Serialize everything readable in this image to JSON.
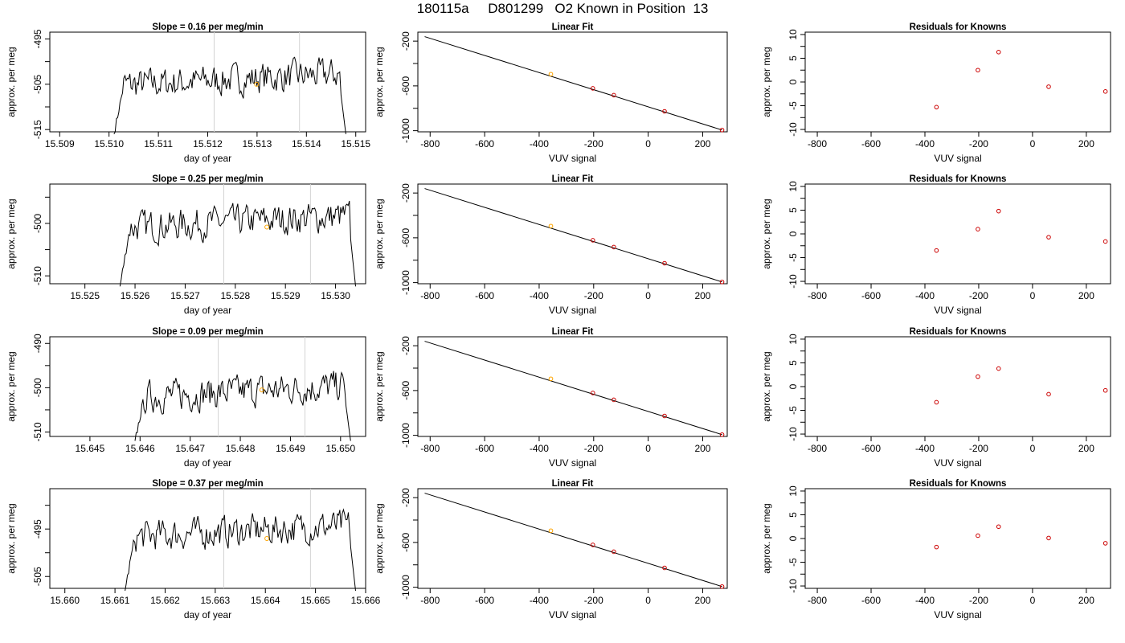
{
  "suptitle": "180115a     D801299   O2 Known in Position  13",
  "colors": {
    "series": "#000000",
    "grid_lines": "#d3d3d3",
    "midpoint": "#ffa500",
    "points": "#cc0000",
    "axes": "#000000"
  },
  "chart_data": [
    {
      "type": "line",
      "title": "Slope =  0.16  per meg/min",
      "xlabel": "day of year",
      "ylabel": "approx. per meg",
      "xlim": [
        15.5088,
        15.5152
      ],
      "ylim": [
        -515.5,
        -493.5
      ],
      "xticks": [
        "15.509",
        "15.510",
        "15.511",
        "15.512",
        "15.513",
        "15.514",
        "15.515"
      ],
      "yticks": [
        "-495",
        "-505",
        "-515"
      ],
      "x_start": 15.5101,
      "x_end": 15.5148,
      "y_start": -516.0,
      "y_end": -516.0,
      "baseline": -505.3,
      "vlines": [
        15.51213,
        15.51386
      ],
      "midpoint": {
        "x": 15.51299,
        "y": -505.0
      }
    },
    {
      "type": "scatter",
      "title": "Linear Fit",
      "xlabel": "VUV signal",
      "ylabel": "approx. per meg",
      "xlim": [
        -845,
        290
      ],
      "ylim": [
        -1010,
        -120
      ],
      "xticks": [
        "-800",
        "-600",
        "-400",
        "-200",
        "0",
        "200"
      ],
      "yticks": [
        "-200",
        "-600",
        "-1000"
      ],
      "fit_line": {
        "x": [
          -820,
          271
        ],
        "y": [
          -160,
          -994
        ]
      },
      "points_x": [
        -357,
        -203,
        -126,
        60,
        271
      ],
      "points_y": [
        -495,
        -622,
        -683,
        -827,
        -994
      ]
    },
    {
      "type": "scatter",
      "title": "Residuals for Knowns",
      "xlabel": "VUV signal",
      "ylabel": "approx. per meg",
      "xlim": [
        -845,
        290
      ],
      "ylim": [
        -10.5,
        10.5
      ],
      "xticks": [
        "-800",
        "-600",
        "-400",
        "-200",
        "0",
        "200"
      ],
      "yticks": [
        "10",
        "5",
        "0",
        "-5",
        "-10"
      ],
      "points_x": [
        -357,
        -203,
        -126,
        60,
        271
      ],
      "points_y": [
        -5.3,
        2.5,
        6.3,
        -1.0,
        -2.0
      ]
    },
    {
      "type": "line",
      "title": "Slope =  0.25  per meg/min",
      "xlabel": "day of year",
      "ylabel": "approx. per meg",
      "xlim": [
        15.5243,
        15.5306
      ],
      "ylim": [
        -511.5,
        -492.5
      ],
      "xticks": [
        "15.525",
        "15.526",
        "15.527",
        "15.528",
        "15.529",
        "15.530"
      ],
      "yticks": [
        "-500",
        "-510"
      ],
      "x_start": 15.5257,
      "x_end": 15.5304,
      "y_start": -512.0,
      "y_end": -512.0,
      "baseline": -500.8,
      "vlines": [
        15.52777,
        15.5295
      ],
      "midpoint": {
        "x": 15.52863,
        "y": -500.7
      }
    },
    {
      "type": "scatter",
      "title": "Linear Fit",
      "xlabel": "VUV signal",
      "ylabel": "approx. per meg",
      "xlim": [
        -845,
        290
      ],
      "ylim": [
        -1010,
        -120
      ],
      "xticks": [
        "-800",
        "-600",
        "-400",
        "-200",
        "0",
        "200"
      ],
      "yticks": [
        "-200",
        "-600",
        "-1000"
      ],
      "fit_line": {
        "x": [
          -820,
          271
        ],
        "y": [
          -160,
          -994
        ]
      },
      "points_x": [
        -357,
        -203,
        -126,
        60,
        271
      ],
      "points_y": [
        -495,
        -622,
        -683,
        -827,
        -994
      ]
    },
    {
      "type": "scatter",
      "title": "Residuals for Knowns",
      "xlabel": "VUV signal",
      "ylabel": "approx. per meg",
      "xlim": [
        -845,
        290
      ],
      "ylim": [
        -10.5,
        10.5
      ],
      "xticks": [
        "-800",
        "-600",
        "-400",
        "-200",
        "0",
        "200"
      ],
      "yticks": [
        "10",
        "5",
        "0",
        "-5",
        "-10"
      ],
      "points_x": [
        -357,
        -203,
        -126,
        60,
        271
      ],
      "points_y": [
        -3.5,
        1.0,
        4.8,
        -0.7,
        -1.6
      ]
    },
    {
      "type": "line",
      "title": "Slope =  0.09  per meg/min",
      "xlabel": "day of year",
      "ylabel": "approx. per meg",
      "xlim": [
        15.6442,
        15.6505
      ],
      "ylim": [
        -511.0,
        -488.5
      ],
      "xticks": [
        "15.645",
        "15.646",
        "15.647",
        "15.648",
        "15.649",
        "15.650"
      ],
      "yticks": [
        "-490",
        "-500",
        "-510"
      ],
      "x_start": 15.6459,
      "x_end": 15.6502,
      "y_start": -512.0,
      "y_end": -512.0,
      "baseline": -502.2,
      "vlines": [
        15.64756,
        15.64929
      ],
      "midpoint": {
        "x": 15.64843,
        "y": -500.5
      }
    },
    {
      "type": "scatter",
      "title": "Linear Fit",
      "xlabel": "VUV signal",
      "ylabel": "approx. per meg",
      "xlim": [
        -845,
        290
      ],
      "ylim": [
        -1010,
        -120
      ],
      "xticks": [
        "-800",
        "-600",
        "-400",
        "-200",
        "0",
        "200"
      ],
      "yticks": [
        "-200",
        "-600",
        "-1000"
      ],
      "fit_line": {
        "x": [
          -820,
          271
        ],
        "y": [
          -160,
          -994
        ]
      },
      "points_x": [
        -357,
        -203,
        -126,
        60,
        271
      ],
      "points_y": [
        -495,
        -622,
        -683,
        -827,
        -994
      ]
    },
    {
      "type": "scatter",
      "title": "Residuals for Knowns",
      "xlabel": "VUV signal",
      "ylabel": "approx. per meg",
      "xlim": [
        -845,
        290
      ],
      "ylim": [
        -10.5,
        10.5
      ],
      "xticks": [
        "-800",
        "-600",
        "-400",
        "-200",
        "0",
        "200"
      ],
      "yticks": [
        "10",
        "5",
        "0",
        "-5",
        "-10"
      ],
      "points_x": [
        -357,
        -203,
        -126,
        60,
        271
      ],
      "points_y": [
        -3.3,
        2.1,
        3.8,
        -1.6,
        -0.8
      ]
    },
    {
      "type": "line",
      "title": "Slope =  0.37  per meg/min",
      "xlabel": "day of year",
      "ylabel": "approx. per meg",
      "xlim": [
        15.6597,
        15.666
      ],
      "ylim": [
        -507.5,
        -486.5
      ],
      "xticks": [
        "15.660",
        "15.661",
        "15.662",
        "15.663",
        "15.664",
        "15.665",
        "15.666"
      ],
      "yticks": [
        "-495",
        "-505"
      ],
      "x_start": 15.6612,
      "x_end": 15.6658,
      "y_start": -508.0,
      "y_end": -508.0,
      "baseline": -496.7,
      "vlines": [
        15.66317,
        15.6649
      ],
      "midpoint": {
        "x": 15.66403,
        "y": -497.0
      }
    },
    {
      "type": "scatter",
      "title": "Linear Fit",
      "xlabel": "VUV signal",
      "ylabel": "approx. per meg",
      "xlim": [
        -845,
        290
      ],
      "ylim": [
        -1010,
        -120
      ],
      "xticks": [
        "-800",
        "-600",
        "-400",
        "-200",
        "0",
        "200"
      ],
      "yticks": [
        "-200",
        "-600",
        "-1000"
      ],
      "fit_line": {
        "x": [
          -820,
          271
        ],
        "y": [
          -160,
          -994
        ]
      },
      "points_x": [
        -357,
        -203,
        -126,
        60,
        271
      ],
      "points_y": [
        -495,
        -622,
        -683,
        -827,
        -994
      ]
    },
    {
      "type": "scatter",
      "title": "Residuals for Knowns",
      "xlabel": "VUV signal",
      "ylabel": "approx. per meg",
      "xlim": [
        -845,
        290
      ],
      "ylim": [
        -10.5,
        10.5
      ],
      "xticks": [
        "-800",
        "-600",
        "-400",
        "-200",
        "0",
        "200"
      ],
      "yticks": [
        "10",
        "5",
        "0",
        "-5",
        "-10"
      ],
      "points_x": [
        -357,
        -203,
        -126,
        60,
        271
      ],
      "points_y": [
        -1.8,
        0.6,
        2.5,
        0.1,
        -1.0
      ]
    }
  ]
}
